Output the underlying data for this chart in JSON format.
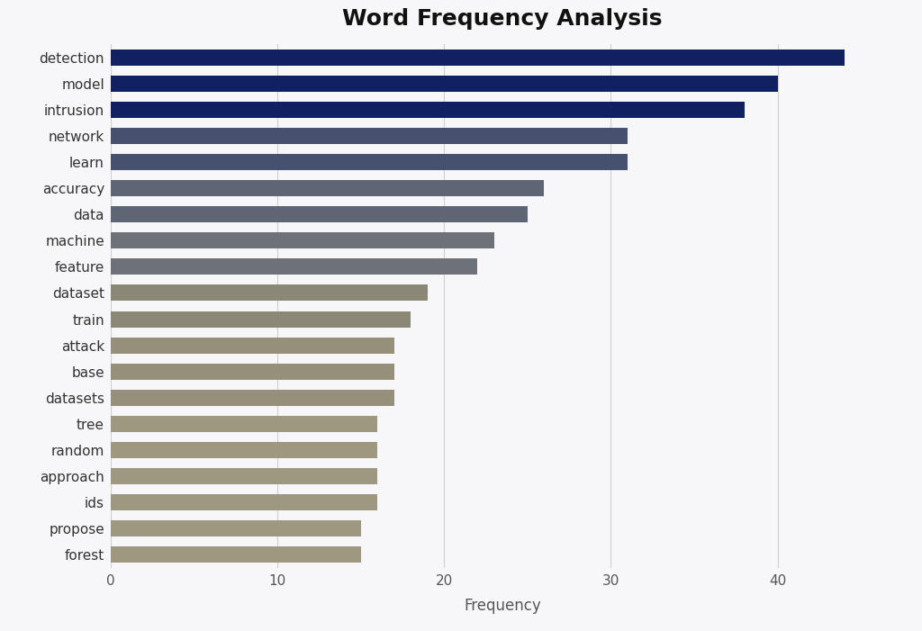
{
  "title": "Word Frequency Analysis",
  "xlabel": "Frequency",
  "categories": [
    "detection",
    "model",
    "intrusion",
    "network",
    "learn",
    "accuracy",
    "data",
    "machine",
    "feature",
    "dataset",
    "train",
    "attack",
    "base",
    "datasets",
    "tree",
    "random",
    "approach",
    "ids",
    "propose",
    "forest"
  ],
  "values": [
    44,
    40,
    38,
    31,
    31,
    26,
    25,
    23,
    22,
    19,
    18,
    17,
    17,
    17,
    16,
    16,
    16,
    16,
    15,
    15
  ],
  "bar_colors": [
    "#102060",
    "#102060",
    "#102060",
    "#485070",
    "#485070",
    "#5e6575",
    "#5e6575",
    "#6e7278",
    "#6e7278",
    "#8c8878",
    "#8c8878",
    "#96907a",
    "#96907a",
    "#96907a",
    "#9e9880",
    "#9e9880",
    "#9e9880",
    "#9e9880",
    "#9e9880",
    "#9e9880"
  ],
  "background_color": "#f7f7f9",
  "title_fontsize": 18,
  "xlim": [
    0,
    47
  ],
  "xticks": [
    0,
    10,
    20,
    30,
    40
  ]
}
